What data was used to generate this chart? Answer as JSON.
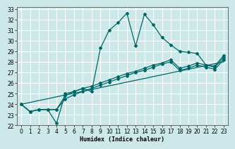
{
  "xlabel": "Humidex (Indice chaleur)",
  "bg_color": "#cde8e8",
  "grid_color": "#ffffff",
  "line_color": "#006666",
  "xlim": [
    -0.5,
    23.5
  ],
  "ylim": [
    22,
    33.2
  ],
  "xticks": [
    0,
    1,
    2,
    3,
    4,
    5,
    6,
    7,
    8,
    9,
    10,
    11,
    12,
    13,
    14,
    15,
    16,
    17,
    18,
    19,
    20,
    21,
    22,
    23
  ],
  "yticks": [
    22,
    23,
    24,
    25,
    26,
    27,
    28,
    29,
    30,
    31,
    32,
    33
  ],
  "x_main": [
    0,
    1,
    2,
    3,
    4,
    5,
    6,
    7,
    8,
    9,
    10,
    11,
    12,
    13,
    14,
    15,
    16,
    17,
    18,
    19,
    20,
    21,
    22,
    23
  ],
  "y_main": [
    24,
    23.3,
    23.5,
    23.5,
    22.2,
    25.0,
    25.2,
    25.5,
    25.2,
    29.3,
    31.0,
    31.7,
    32.6,
    29.5,
    32.5,
    31.5,
    30.3,
    29.6,
    29.0,
    28.9,
    28.8,
    27.7,
    27.6,
    28.6
  ],
  "y_diag1": [
    24,
    23.3,
    23.5,
    23.5,
    23.5,
    24.8,
    25.2,
    25.5,
    25.7,
    26.0,
    26.3,
    26.6,
    26.9,
    27.1,
    27.4,
    27.7,
    27.9,
    28.2,
    27.4,
    27.6,
    27.9,
    27.7,
    27.5,
    28.4
  ],
  "y_diag2": [
    24,
    23.3,
    23.5,
    23.5,
    23.5,
    24.5,
    24.9,
    25.2,
    25.5,
    25.8,
    26.1,
    26.4,
    26.7,
    27.0,
    27.2,
    27.5,
    27.8,
    28.0,
    27.2,
    27.4,
    27.7,
    27.5,
    27.3,
    28.2
  ],
  "y_straight": [
    24,
    24.17,
    24.35,
    24.52,
    24.7,
    24.87,
    25.04,
    25.22,
    25.39,
    25.57,
    25.74,
    25.91,
    26.09,
    26.26,
    26.43,
    26.61,
    26.78,
    26.96,
    27.13,
    27.3,
    27.48,
    27.65,
    27.83,
    28.0
  ]
}
